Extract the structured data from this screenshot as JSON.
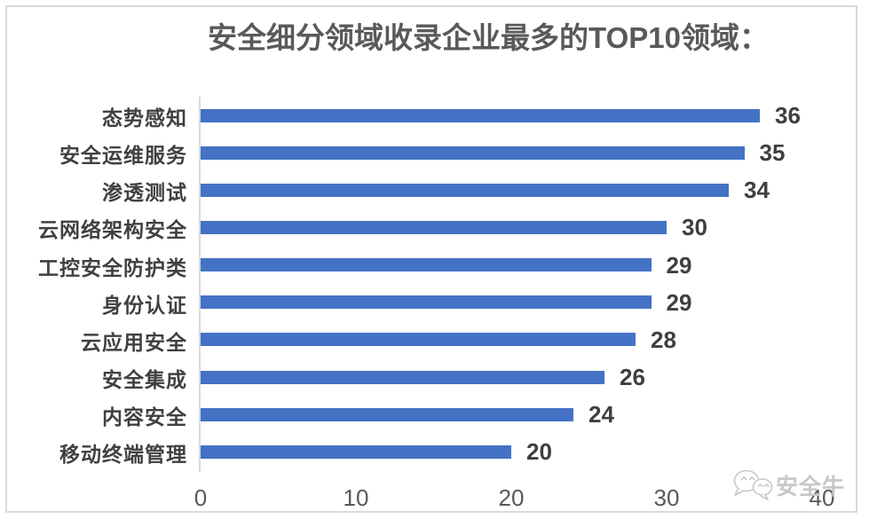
{
  "chart_data": {
    "type": "bar",
    "orientation": "horizontal",
    "title": "安全细分领域收录企业最多的TOP10领域：",
    "categories": [
      "态势感知",
      "安全运维服务",
      "渗透测试",
      "云网络架构安全",
      "工控安全防护类",
      "身份认证",
      "云应用安全",
      "安全集成",
      "内容安全",
      "移动终端管理"
    ],
    "values": [
      36,
      35,
      34,
      30,
      29,
      29,
      28,
      26,
      24,
      20
    ],
    "xlabel": "",
    "ylabel": "",
    "xlim": [
      0,
      40
    ],
    "xticks": [
      0,
      10,
      20,
      30,
      40
    ],
    "data_labels": true,
    "grid": false,
    "legend": false,
    "colors": {
      "bar": "#4472C4",
      "title": "#595959",
      "category_label": "#404040",
      "value_label": "#3F3F3F",
      "tick_label": "#595959",
      "axis_line": "#D9D9D9",
      "frame_border": "#D9D9D9",
      "background": "#FFFFFF",
      "watermark": "#C8C8C8"
    }
  },
  "watermark": {
    "label": "安全牛",
    "icon": "wechat-chat-bubbles-icon"
  }
}
